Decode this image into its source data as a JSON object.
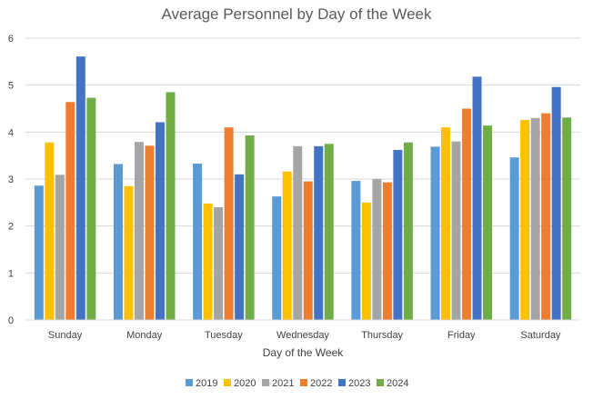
{
  "chart_data": {
    "type": "bar",
    "title": "Average Personnel by Day of the Week",
    "xlabel": "Day of the Week",
    "ylabel": "",
    "ylim": [
      0,
      6
    ],
    "yticks": [
      0,
      1,
      2,
      3,
      4,
      5,
      6
    ],
    "grid": true,
    "legend_position": "bottom",
    "categories": [
      "Sunday",
      "Monday",
      "Tuesday",
      "Wednesday",
      "Thursday",
      "Friday",
      "Saturday"
    ],
    "series": [
      {
        "name": "2019",
        "color": "#5b9bd5",
        "values": [
          2.86,
          3.32,
          3.33,
          2.63,
          2.96,
          3.69,
          3.46
        ]
      },
      {
        "name": "2020",
        "color": "#ffc000",
        "values": [
          3.78,
          2.85,
          2.48,
          3.16,
          2.5,
          4.1,
          4.26
        ]
      },
      {
        "name": "2021",
        "color": "#a5a5a5",
        "values": [
          3.09,
          3.79,
          2.4,
          3.7,
          3.0,
          3.8,
          4.3
        ]
      },
      {
        "name": "2022",
        "color": "#ed7d31",
        "values": [
          4.64,
          3.71,
          4.1,
          2.95,
          2.93,
          4.5,
          4.4
        ]
      },
      {
        "name": "2023",
        "color": "#4472c4",
        "values": [
          5.61,
          4.21,
          3.1,
          3.7,
          3.62,
          5.18,
          4.96
        ]
      },
      {
        "name": "2024",
        "color": "#70ad47",
        "values": [
          4.73,
          4.85,
          3.93,
          3.75,
          3.78,
          4.14,
          4.31
        ]
      }
    ]
  }
}
